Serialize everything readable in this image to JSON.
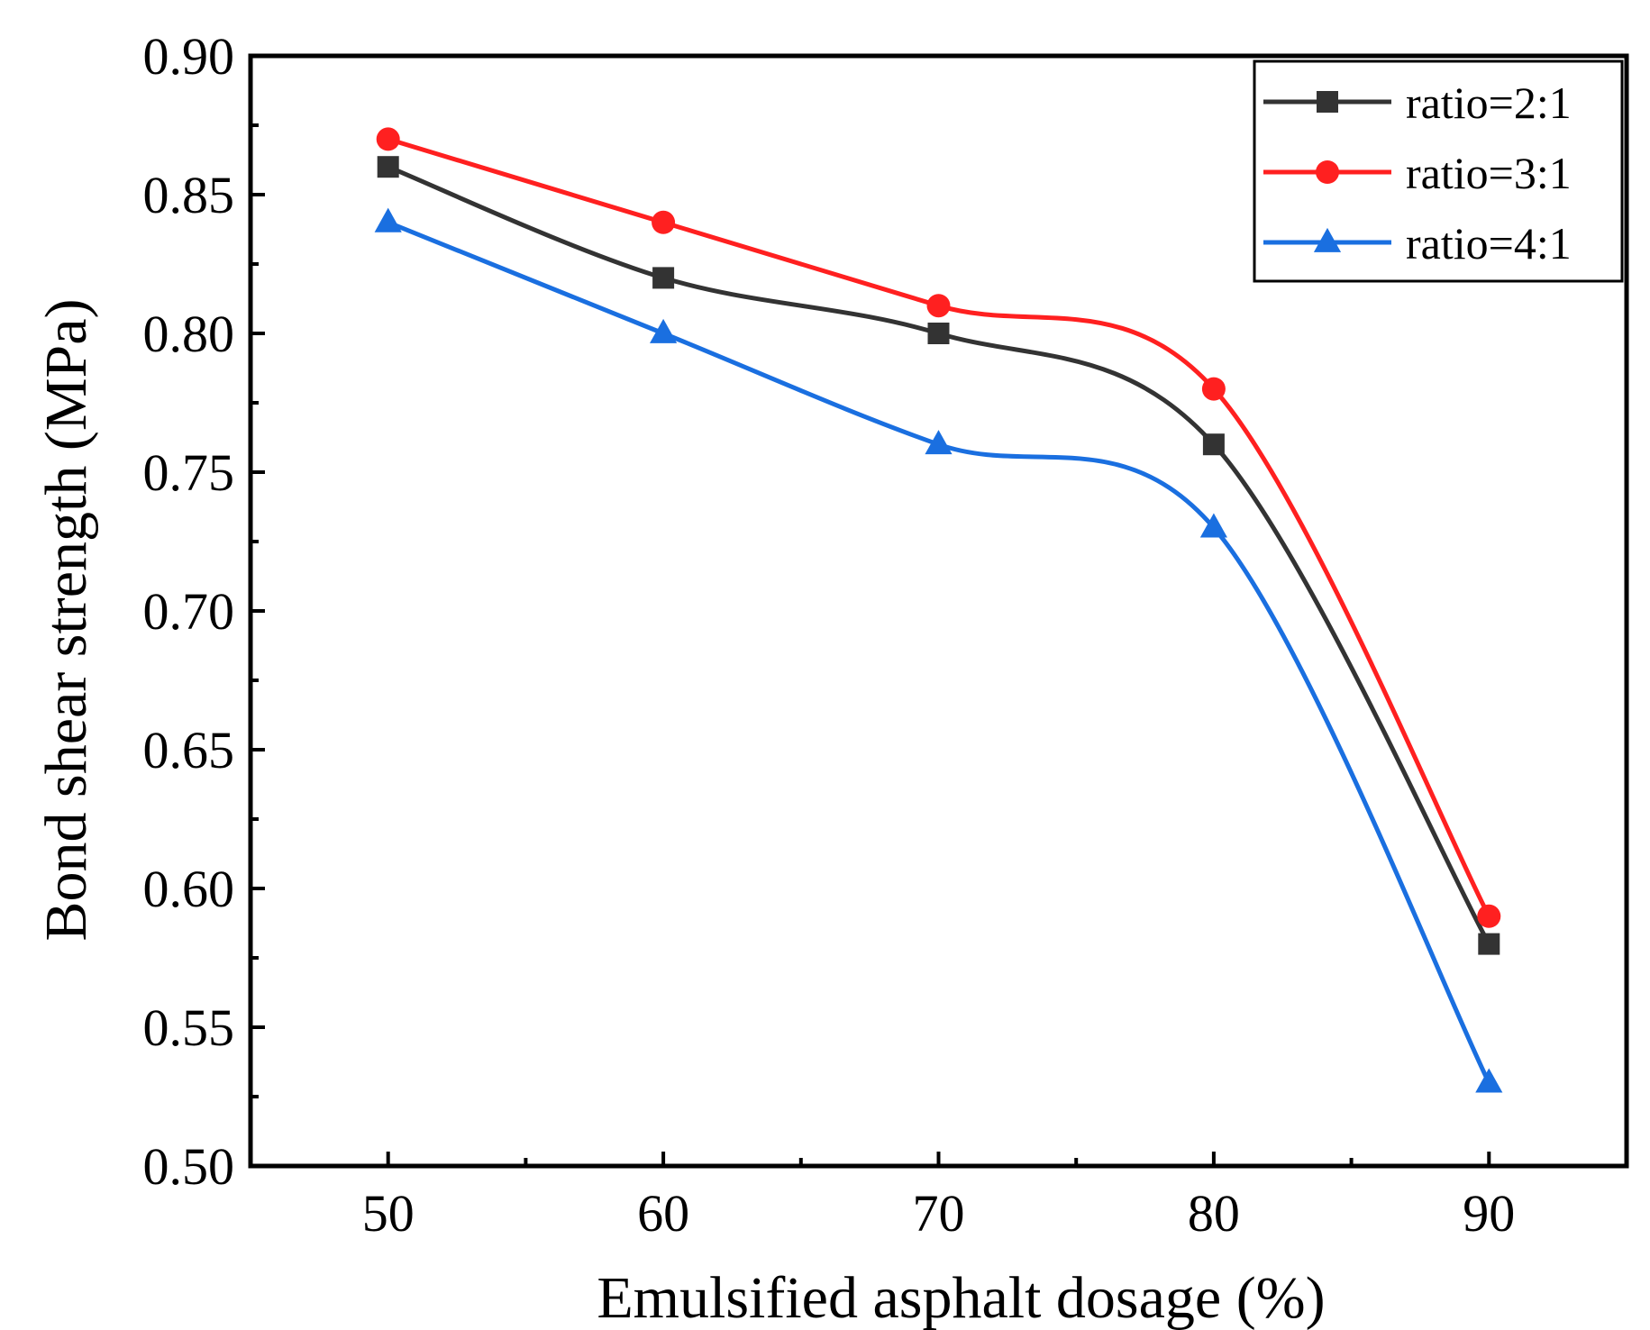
{
  "chart_data": {
    "type": "line",
    "title": "",
    "xlabel": "Emulsified asphalt dosage (%)",
    "ylabel": "Bond shear strength (MPa)",
    "x": [
      50,
      60,
      70,
      80,
      90
    ],
    "xlim": [
      45,
      95
    ],
    "ylim": [
      0.5,
      0.9
    ],
    "xticks": [
      50,
      60,
      70,
      80,
      90
    ],
    "xtick_labels": [
      "50",
      "60",
      "70",
      "80",
      "90"
    ],
    "yticks": [
      0.5,
      0.55,
      0.6,
      0.65,
      0.7,
      0.75,
      0.8,
      0.85,
      0.9
    ],
    "ytick_labels": [
      "0.50",
      "0.55",
      "0.60",
      "0.65",
      "0.70",
      "0.75",
      "0.80",
      "0.85",
      "0.90"
    ],
    "grid": false,
    "legend_position": "top-right",
    "series": [
      {
        "name": "ratio=2:1",
        "values": [
          0.86,
          0.82,
          0.8,
          0.76,
          0.58
        ],
        "color": "#333333",
        "marker": "square"
      },
      {
        "name": "ratio=3:1",
        "values": [
          0.87,
          0.84,
          0.81,
          0.78,
          0.59
        ],
        "color": "#ff2020",
        "marker": "circle"
      },
      {
        "name": "ratio=4:1",
        "values": [
          0.84,
          0.8,
          0.76,
          0.73,
          0.53
        ],
        "color": "#1a6fe0",
        "marker": "triangle"
      }
    ]
  }
}
